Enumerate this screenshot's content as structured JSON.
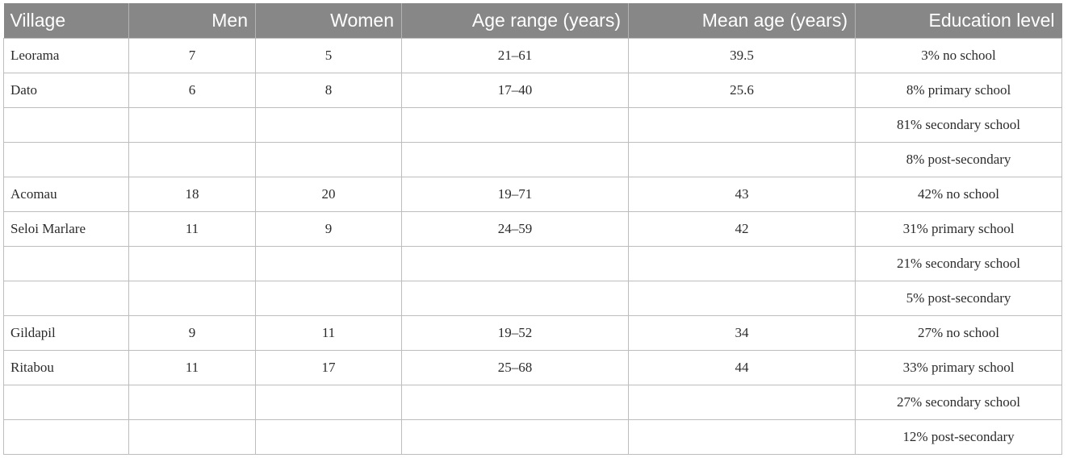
{
  "table": {
    "headers": [
      "Village",
      "Men",
      "Women",
      "Age range (years)",
      "Mean age (years)",
      "Education level"
    ],
    "rows": [
      [
        "Leorama",
        "7",
        "5",
        "21–61",
        "39.5",
        "3% no school"
      ],
      [
        "Dato",
        "6",
        "8",
        "17–40",
        "25.6",
        "8% primary school"
      ],
      [
        "",
        "",
        "",
        "",
        "",
        "81% secondary school"
      ],
      [
        "",
        "",
        "",
        "",
        "",
        "8% post-secondary"
      ],
      [
        "Acomau",
        "18",
        "20",
        "19–71",
        "43",
        "42% no school"
      ],
      [
        "Seloi Marlare",
        "11",
        "9",
        "24–59",
        "42",
        "31% primary school"
      ],
      [
        "",
        "",
        "",
        "",
        "",
        "21% secondary school"
      ],
      [
        "",
        "",
        "",
        "",
        "",
        "5% post-secondary"
      ],
      [
        "Gildapil",
        "9",
        "11",
        "19–52",
        "34",
        "27% no school"
      ],
      [
        "Ritabou",
        "11",
        "17",
        "25–68",
        "44",
        "33% primary school"
      ],
      [
        "",
        "",
        "",
        "",
        "",
        "27% secondary school"
      ],
      [
        "",
        "",
        "",
        "",
        "",
        "12% post-secondary"
      ]
    ]
  },
  "colors": {
    "header_background": "#878787",
    "header_text": "#ffffff",
    "grid_lines": "#bdbdbd",
    "body_text": "#2b2b2b"
  }
}
